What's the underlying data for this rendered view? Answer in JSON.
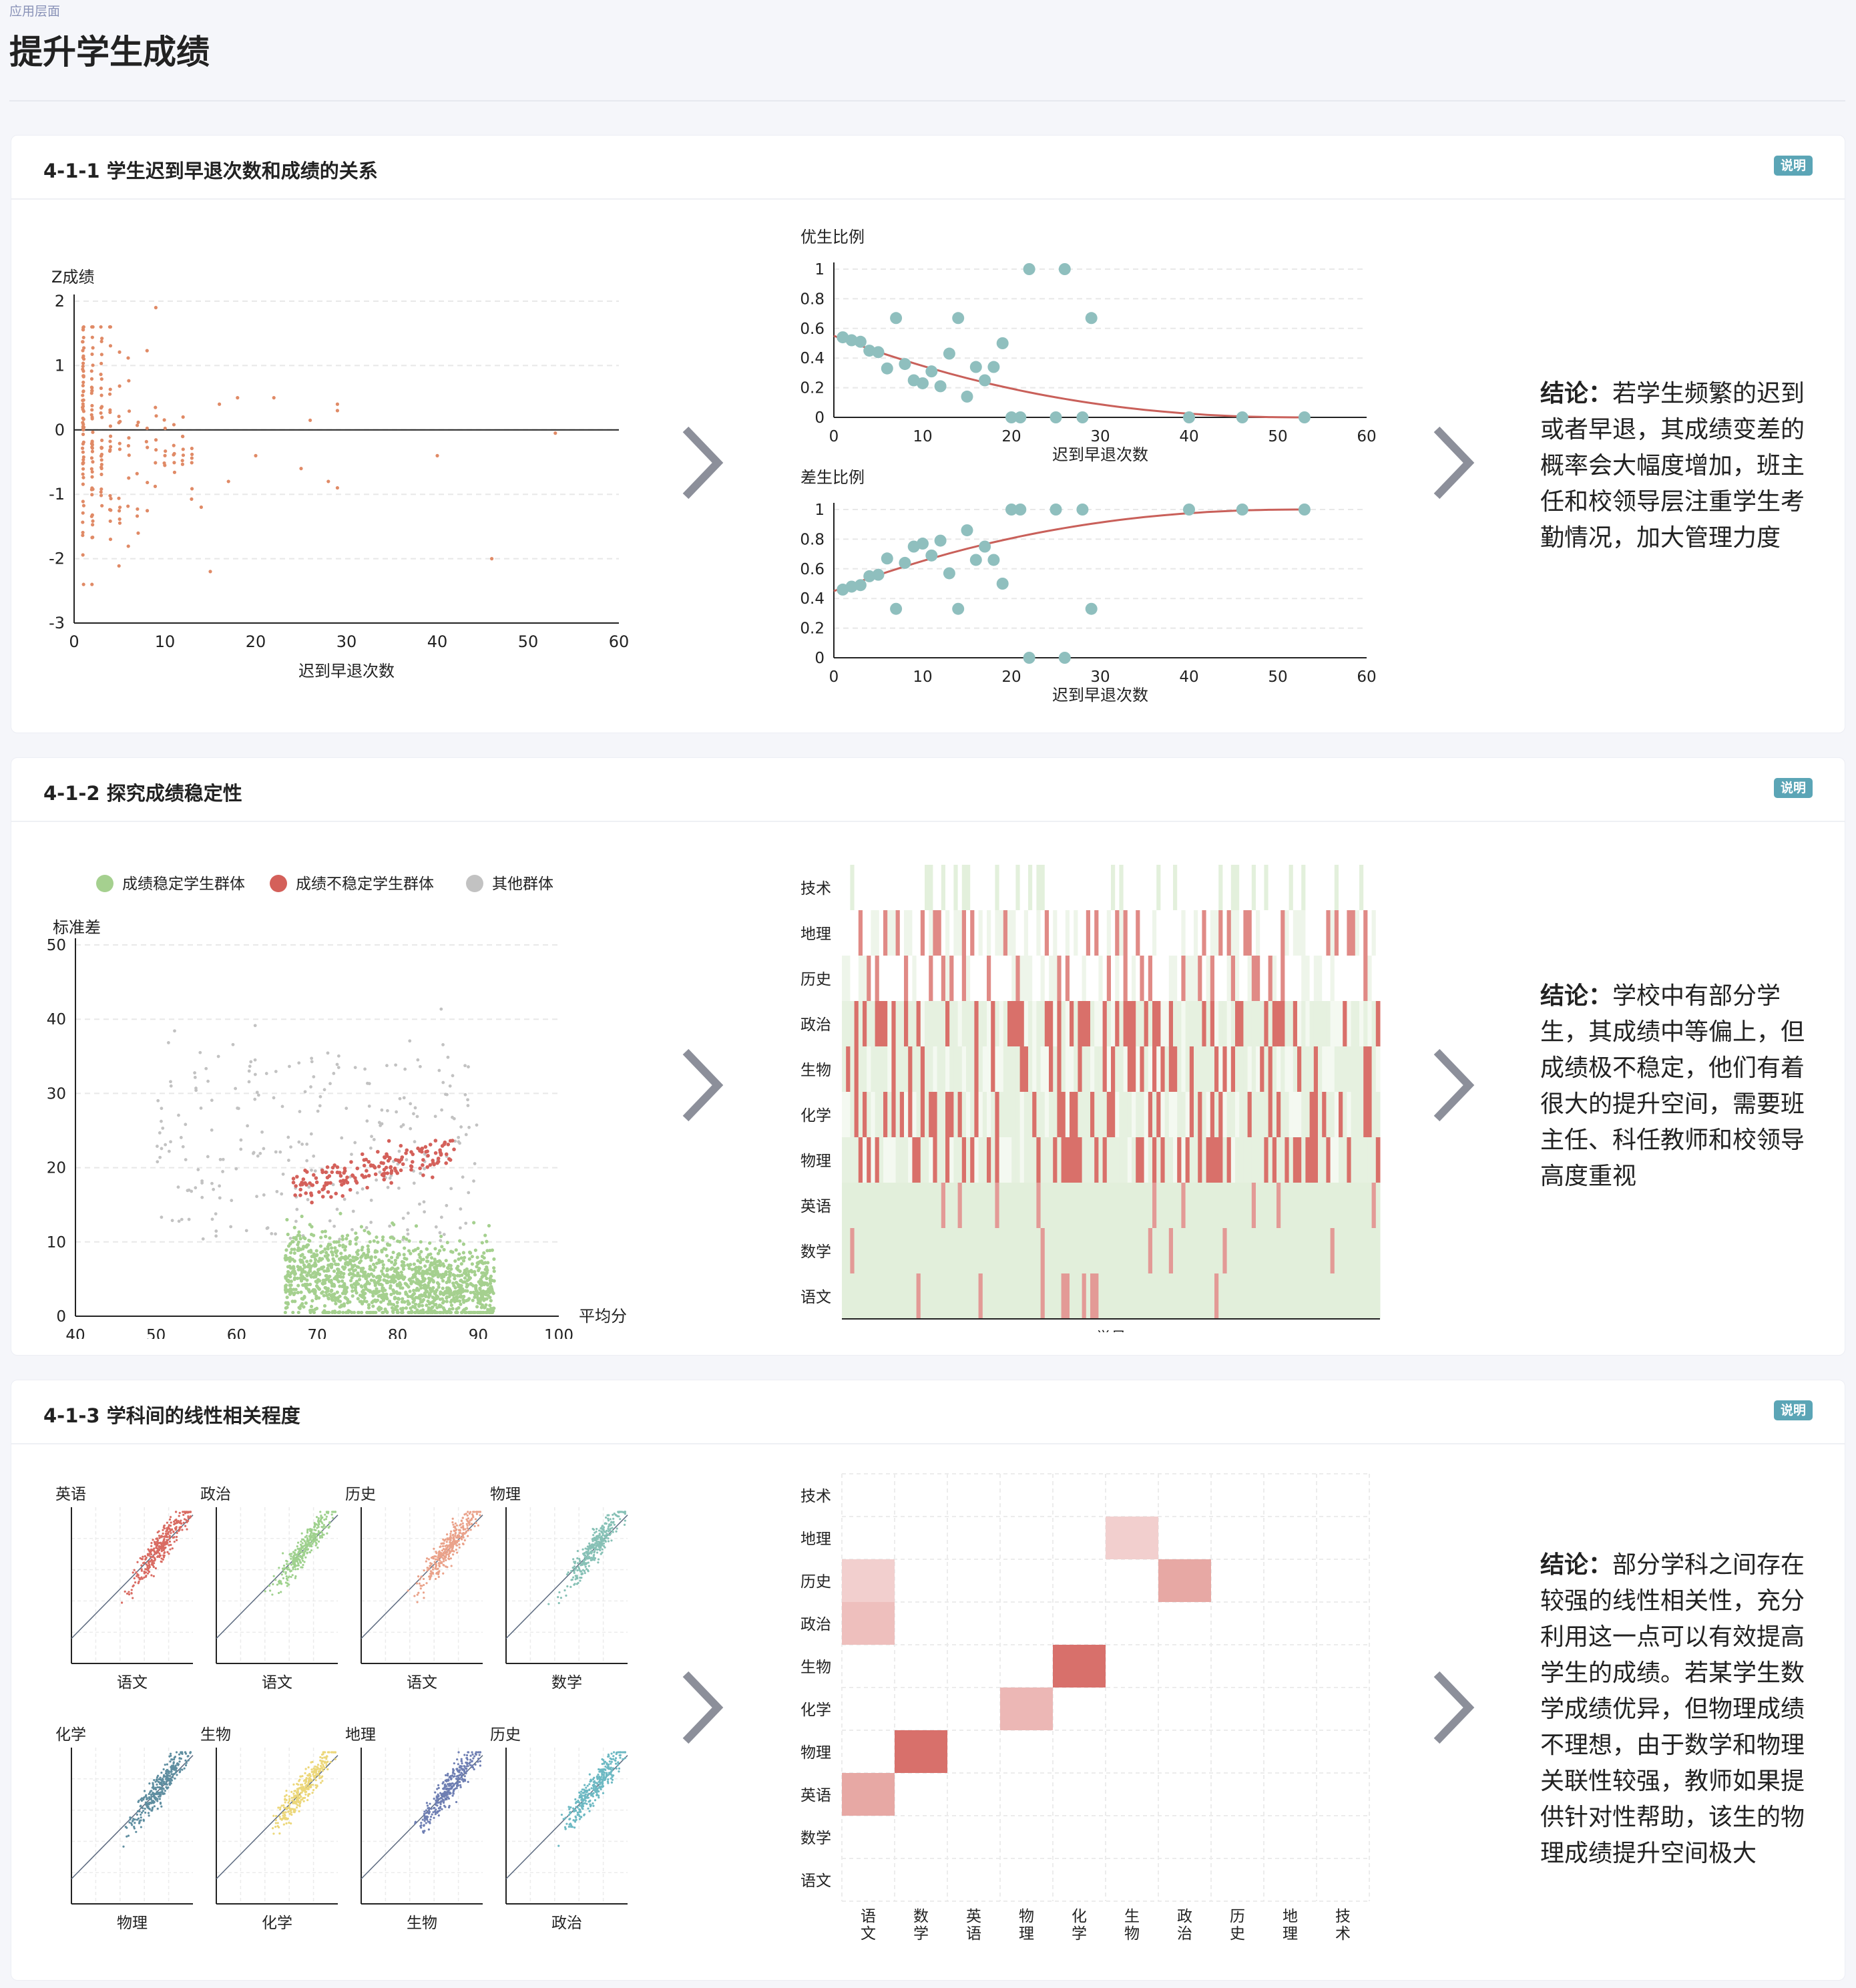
{
  "header": {
    "breadcrumb": "应用层面",
    "title": "提升学生成绩"
  },
  "colors": {
    "orange": "#e08a66",
    "teal": "#8fbfbe",
    "red_line": "#c9605a",
    "green": "#a5d08f",
    "red": "#d4605a",
    "grey": "#c2c2c2",
    "badge": "#5ba5b6"
  },
  "sections": [
    {
      "title": "4-1-1 学生迟到早退次数和成绩的关系",
      "help": "说明",
      "conclusion_label": "结论：",
      "conclusion": "若学生频繁的迟到或者早退，其成绩变差的概率会大幅度增加，班主任和校领导层注重学生考勤情况，加大管理力度"
    },
    {
      "title": "4-1-2 探究成绩稳定性",
      "help": "说明",
      "conclusion_label": "结论：",
      "conclusion": "学校中有部分学生，其成绩中等偏上，但成绩极不稳定，他们有着很大的提升空间，需要班主任、科任教师和校领导高度重视"
    },
    {
      "title": "4-1-3 学科间的线性相关程度",
      "help": "说明",
      "conclusion_label": "结论：",
      "conclusion": "部分学科之间存在较强的线性相关性，充分利用这一点可以有效提高学生的成绩。若某学生数学成绩优异，但物理成绩不理想，由于数学和物理关联性较强，教师如果提供针对性帮助，该生的物理成绩提升空间极大"
    }
  ],
  "chart_data": [
    {
      "type": "scatter",
      "ylabel": "Z成绩",
      "xlabel": "迟到早退次数",
      "xlim": [
        0,
        60
      ],
      "ylim": [
        -3,
        2
      ],
      "xticks": [
        "0",
        "10",
        "20",
        "30",
        "40",
        "50",
        "60"
      ],
      "yticks": [
        "2",
        "1",
        "0",
        "-1",
        "-2",
        "-3"
      ],
      "color": "#e08a66",
      "outliers": [
        [
          16,
          0.4
        ],
        [
          18,
          0.5
        ],
        [
          22,
          0.5
        ],
        [
          26,
          0.15
        ],
        [
          29,
          0.4
        ],
        [
          29,
          0.3
        ],
        [
          40,
          -0.4
        ],
        [
          46,
          -2
        ],
        [
          53,
          -0.05
        ],
        [
          25,
          -0.6
        ],
        [
          28,
          -0.8
        ],
        [
          29,
          -0.9
        ],
        [
          15,
          -2.2
        ],
        [
          20,
          -0.4
        ],
        [
          17,
          -0.8
        ],
        [
          14,
          -1.2
        ],
        [
          9,
          1.9
        ],
        [
          12,
          0.2
        ]
      ]
    },
    {
      "type": "scatter",
      "ylabel": "优生比例",
      "xlabel": "迟到早退次数",
      "xlim": [
        0,
        60
      ],
      "ylim": [
        0,
        1
      ],
      "xticks": [
        "0",
        "10",
        "20",
        "30",
        "40",
        "50",
        "60"
      ],
      "yticks": [
        "1",
        "0.8",
        "0.6",
        "0.4",
        "0.2",
        "0"
      ],
      "points": [
        [
          1,
          0.54
        ],
        [
          2,
          0.52
        ],
        [
          3,
          0.51
        ],
        [
          4,
          0.45
        ],
        [
          5,
          0.44
        ],
        [
          6,
          0.33
        ],
        [
          7,
          0.67
        ],
        [
          8,
          0.36
        ],
        [
          9,
          0.25
        ],
        [
          10,
          0.23
        ],
        [
          11,
          0.31
        ],
        [
          12,
          0.21
        ],
        [
          13,
          0.43
        ],
        [
          14,
          0.67
        ],
        [
          15,
          0.14
        ],
        [
          16,
          0.34
        ],
        [
          17,
          0.25
        ],
        [
          18,
          0.34
        ],
        [
          19,
          0.5
        ],
        [
          20,
          0
        ],
        [
          21,
          0
        ],
        [
          22,
          1
        ],
        [
          25,
          0
        ],
        [
          26,
          1
        ],
        [
          28,
          0
        ],
        [
          29,
          0.67
        ],
        [
          40,
          0
        ],
        [
          46,
          0
        ],
        [
          53,
          0
        ]
      ],
      "trend": "exponential decay"
    },
    {
      "type": "scatter",
      "ylabel": "差生比例",
      "xlabel": "迟到早退次数",
      "xlim": [
        0,
        60
      ],
      "ylim": [
        0,
        1
      ],
      "xticks": [
        "0",
        "10",
        "20",
        "30",
        "40",
        "50",
        "60"
      ],
      "yticks": [
        "1",
        "0.8",
        "0.6",
        "0.4",
        "0.2",
        "0"
      ],
      "points": [
        [
          1,
          0.46
        ],
        [
          2,
          0.48
        ],
        [
          3,
          0.49
        ],
        [
          4,
          0.55
        ],
        [
          5,
          0.56
        ],
        [
          6,
          0.67
        ],
        [
          7,
          0.33
        ],
        [
          8,
          0.64
        ],
        [
          9,
          0.75
        ],
        [
          10,
          0.77
        ],
        [
          11,
          0.69
        ],
        [
          12,
          0.79
        ],
        [
          13,
          0.57
        ],
        [
          14,
          0.33
        ],
        [
          15,
          0.86
        ],
        [
          16,
          0.66
        ],
        [
          17,
          0.75
        ],
        [
          18,
          0.66
        ],
        [
          19,
          0.5
        ],
        [
          20,
          1
        ],
        [
          21,
          1
        ],
        [
          22,
          0
        ],
        [
          25,
          1
        ],
        [
          26,
          0
        ],
        [
          28,
          1
        ],
        [
          29,
          0.33
        ],
        [
          40,
          1
        ],
        [
          46,
          1
        ],
        [
          53,
          1
        ]
      ],
      "trend": "increasing"
    },
    {
      "type": "scatter",
      "ylabel": "标准差",
      "xlabel": "平均分",
      "xlim": [
        40,
        100
      ],
      "ylim": [
        0,
        50
      ],
      "xticks": [
        "40",
        "50",
        "60",
        "70",
        "80",
        "90",
        "100"
      ],
      "yticks": [
        "50",
        "40",
        "30",
        "20",
        "10",
        "0"
      ],
      "legend": [
        "成绩稳定学生群体",
        "成绩不稳定学生群体",
        "其他群体"
      ],
      "legend_colors": [
        "#a5d08f",
        "#d4605a",
        "#c2c2c2"
      ]
    },
    {
      "type": "heatmap",
      "xlabel": "学号",
      "rows": [
        "技术",
        "地理",
        "历史",
        "政治",
        "生物",
        "化学",
        "物理",
        "英语",
        "数学",
        "语文"
      ]
    },
    {
      "type": "scatter",
      "panels": [
        {
          "ylabel": "英语",
          "xlabel": "语文",
          "color": "#d96b62"
        },
        {
          "ylabel": "政治",
          "xlabel": "语文",
          "color": "#9fd18e"
        },
        {
          "ylabel": "历史",
          "xlabel": "语文",
          "color": "#eaa28a"
        },
        {
          "ylabel": "物理",
          "xlabel": "数学",
          "color": "#87c1b6"
        },
        {
          "ylabel": "化学",
          "xlabel": "物理",
          "color": "#5f8ea0"
        },
        {
          "ylabel": "生物",
          "xlabel": "化学",
          "color": "#ecd77a"
        },
        {
          "ylabel": "地理",
          "xlabel": "生物",
          "color": "#6f7fb3"
        },
        {
          "ylabel": "历史",
          "xlabel": "政治",
          "color": "#6db9c3"
        }
      ]
    },
    {
      "type": "heatmap",
      "rows": [
        "技术",
        "地理",
        "历史",
        "政治",
        "生物",
        "化学",
        "物理",
        "英语",
        "数学",
        "语文"
      ],
      "columns": [
        "语文",
        "数学",
        "英语",
        "物理",
        "化学",
        "生物",
        "政治",
        "历史",
        "地理",
        "技术"
      ],
      "cells": [
        {
          "row": "地理",
          "col": "生物",
          "value": 0.3
        },
        {
          "row": "历史",
          "col": "语文",
          "value": 0.3
        },
        {
          "row": "历史",
          "col": "政治",
          "value": 0.55
        },
        {
          "row": "政治",
          "col": "语文",
          "value": 0.4
        },
        {
          "row": "生物",
          "col": "化学",
          "value": 0.9
        },
        {
          "row": "化学",
          "col": "物理",
          "value": 0.45
        },
        {
          "row": "物理",
          "col": "数学",
          "value": 0.9
        },
        {
          "row": "英语",
          "col": "语文",
          "value": 0.55
        }
      ]
    }
  ]
}
